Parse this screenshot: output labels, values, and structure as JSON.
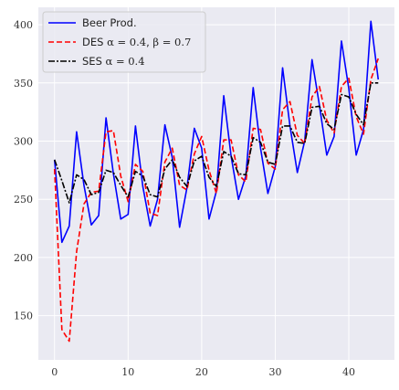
{
  "chart_data": {
    "type": "line",
    "title": "",
    "xlabel": "",
    "ylabel": "",
    "xlim": [
      -2.2,
      46.2
    ],
    "ylim": [
      112,
      415
    ],
    "xticks": [
      0,
      10,
      20,
      30,
      40
    ],
    "yticks": [
      150,
      200,
      250,
      300,
      350,
      400
    ],
    "grid": true,
    "legend_position": "top-left",
    "legend": {
      "beer": "Beer Prod.",
      "des_prefix": "DES ",
      "des_alpha": "α = 0.4",
      "des_sep": ", ",
      "des_beta": "β = 0.7",
      "ses_prefix": "SES ",
      "ses_alpha": "α = 0.4"
    },
    "colors": {
      "background": "#eaeaf2",
      "grid": "#ffffff",
      "beer": "#0000ff",
      "des": "#ff0000",
      "ses": "#000000"
    },
    "x": [
      0,
      1,
      2,
      3,
      4,
      5,
      6,
      7,
      8,
      9,
      10,
      11,
      12,
      13,
      14,
      15,
      16,
      17,
      18,
      19,
      20,
      21,
      22,
      23,
      24,
      25,
      26,
      27,
      28,
      29,
      30,
      31,
      32,
      33,
      34,
      35,
      36,
      37,
      38,
      39,
      40,
      41,
      42,
      43,
      44
    ],
    "series": [
      {
        "name": "Beer Prod.",
        "style": "solid",
        "values": [
          284,
          213,
          227,
          308,
          262,
          228,
          236,
          320,
          272,
          233,
          237,
          313,
          261,
          227,
          250,
          314,
          286,
          226,
          260,
          311,
          294,
          233,
          257,
          339,
          287,
          250,
          270,
          346,
          294,
          255,
          278,
          363,
          313,
          273,
          300,
          370,
          331,
          288,
          304,
          386,
          345,
          288,
          310,
          403,
          353
        ]
      },
      {
        "name": "DES α = 0.4, β = 0.7",
        "style": "dashed",
        "values": [
          276,
          138,
          128,
          205,
          246,
          256,
          257,
          308,
          309,
          270,
          248,
          280,
          274,
          238,
          236,
          282,
          294,
          262,
          258,
          289,
          304,
          275,
          255,
          301,
          301,
          271,
          265,
          311,
          310,
          281,
          276,
          327,
          334,
          305,
          298,
          338,
          347,
          318,
          307,
          347,
          354,
          321,
          306,
          353,
          371
        ]
      },
      {
        "name": "SES α = 0.4",
        "style": "dashdot",
        "values": [
          284,
          266,
          247,
          271,
          267,
          254,
          256,
          275,
          273,
          262,
          252,
          274,
          270,
          254,
          252,
          276,
          284,
          269,
          261,
          283,
          287,
          269,
          261,
          291,
          287,
          272,
          271,
          303,
          299,
          282,
          280,
          313,
          313,
          299,
          298,
          329,
          330,
          315,
          310,
          340,
          338,
          323,
          314,
          350,
          350
        ]
      }
    ]
  }
}
